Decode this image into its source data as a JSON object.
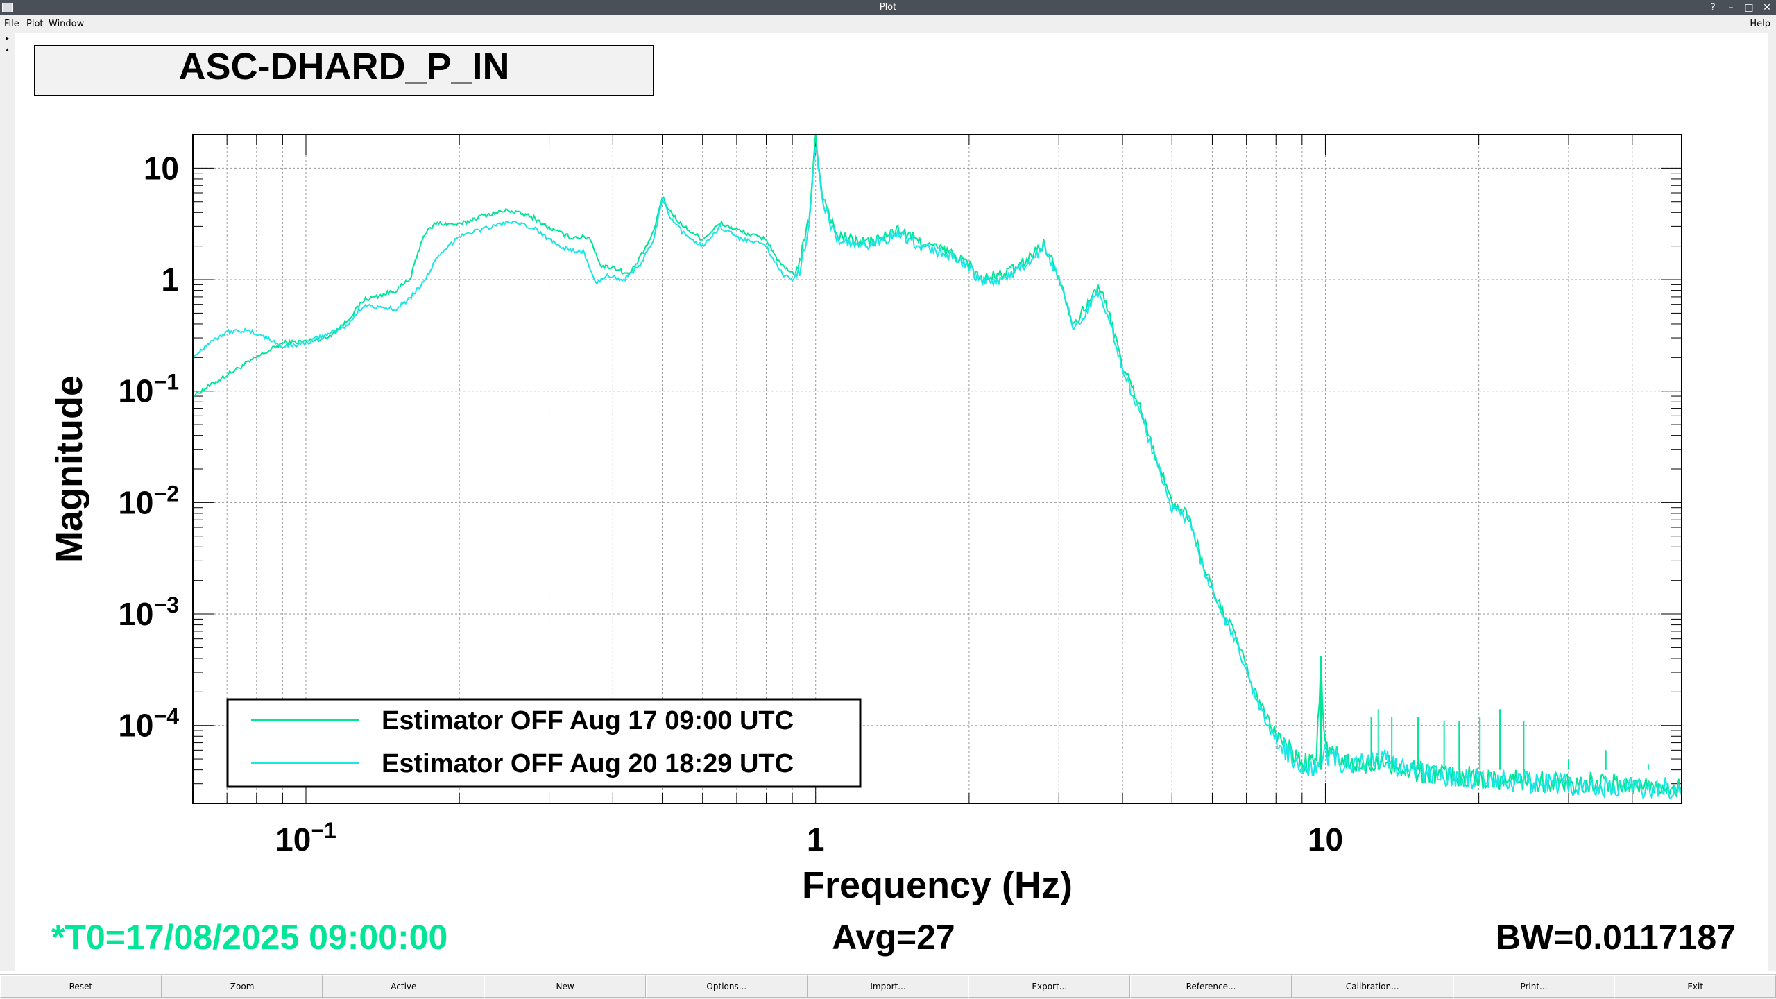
{
  "window": {
    "title": "Plot"
  },
  "menu": [
    "File",
    "Plot",
    "Window"
  ],
  "help": "Help",
  "theme": {
    "trace1": "#00e596",
    "trace2": "#1ae6e6",
    "status_color": "#00e596"
  },
  "plot_title": "ASC-DHARD_P_IN",
  "status": {
    "t0": "*T0=17/08/2025 09:00:00",
    "avg": "Avg=27",
    "bw": "BW=0.0117187"
  },
  "buttons": [
    "Reset",
    "Zoom",
    "Active",
    "New",
    "Options...",
    "Import...",
    "Export...",
    "Reference...",
    "Calibration...",
    "Print...",
    "Exit"
  ],
  "chart_data": {
    "type": "line",
    "title": "ASC-DHARD_P_IN",
    "xlabel": "Frequency (Hz)",
    "ylabel": "Magnitude",
    "xscale": "log",
    "yscale": "log",
    "xlim": [
      0.06,
      50
    ],
    "ylim": [
      2e-05,
      20
    ],
    "grid": true,
    "legend_position": "bottom-left",
    "xticks": [
      {
        "value": 0.1,
        "base": "10",
        "exp": "−1"
      },
      {
        "value": 1,
        "base": "1",
        "exp": ""
      },
      {
        "value": 10,
        "base": "10",
        "exp": ""
      }
    ],
    "yticks": [
      {
        "value": 10,
        "base": "10",
        "exp": ""
      },
      {
        "value": 1,
        "base": "1",
        "exp": ""
      },
      {
        "value": 0.1,
        "base": "10",
        "exp": "−1"
      },
      {
        "value": 0.01,
        "base": "10",
        "exp": "−2"
      },
      {
        "value": 0.001,
        "base": "10",
        "exp": "−3"
      },
      {
        "value": 0.0001,
        "base": "10",
        "exp": "−4"
      }
    ],
    "series": [
      {
        "name": "Estimator OFF Aug 17 09:00 UTC",
        "color": "#00e596",
        "points": [
          [
            0.06,
            0.09
          ],
          [
            0.07,
            0.14
          ],
          [
            0.08,
            0.2
          ],
          [
            0.09,
            0.27
          ],
          [
            0.1,
            0.28
          ],
          [
            0.11,
            0.3
          ],
          [
            0.12,
            0.42
          ],
          [
            0.13,
            0.66
          ],
          [
            0.14,
            0.72
          ],
          [
            0.15,
            0.8
          ],
          [
            0.16,
            1.0
          ],
          [
            0.17,
            2.5
          ],
          [
            0.18,
            3.2
          ],
          [
            0.2,
            3.1
          ],
          [
            0.22,
            3.7
          ],
          [
            0.25,
            4.2
          ],
          [
            0.28,
            3.6
          ],
          [
            0.3,
            2.9
          ],
          [
            0.33,
            2.4
          ],
          [
            0.36,
            2.4
          ],
          [
            0.38,
            1.3
          ],
          [
            0.4,
            1.3
          ],
          [
            0.43,
            1.1
          ],
          [
            0.45,
            1.5
          ],
          [
            0.48,
            2.6
          ],
          [
            0.5,
            5.5
          ],
          [
            0.52,
            4.0
          ],
          [
            0.55,
            3.0
          ],
          [
            0.6,
            2.3
          ],
          [
            0.65,
            3.2
          ],
          [
            0.7,
            2.8
          ],
          [
            0.75,
            2.5
          ],
          [
            0.8,
            2.3
          ],
          [
            0.85,
            1.4
          ],
          [
            0.9,
            1.1
          ],
          [
            0.93,
            1.4
          ],
          [
            0.97,
            3.5
          ],
          [
            1.0,
            19.0
          ],
          [
            1.03,
            6.0
          ],
          [
            1.1,
            2.5
          ],
          [
            1.2,
            2.2
          ],
          [
            1.3,
            2.2
          ],
          [
            1.45,
            2.8
          ],
          [
            1.6,
            2.2
          ],
          [
            1.8,
            1.8
          ],
          [
            2.0,
            1.4
          ],
          [
            2.1,
            1.0
          ],
          [
            2.3,
            1.1
          ],
          [
            2.5,
            1.3
          ],
          [
            2.8,
            2.1
          ],
          [
            3.0,
            1.1
          ],
          [
            3.2,
            0.4
          ],
          [
            3.4,
            0.58
          ],
          [
            3.6,
            0.9
          ],
          [
            3.8,
            0.42
          ],
          [
            4.0,
            0.17
          ],
          [
            4.3,
            0.08
          ],
          [
            4.6,
            0.03
          ],
          [
            5.0,
            0.01
          ],
          [
            5.4,
            0.0075
          ],
          [
            5.8,
            0.0025
          ],
          [
            6.2,
            0.0012
          ],
          [
            6.7,
            0.0006
          ],
          [
            7.2,
            0.00022
          ],
          [
            7.8,
            0.0001
          ],
          [
            8.5,
            6e-05
          ],
          [
            9.2,
            4.5e-05
          ],
          [
            9.6,
            5e-05
          ],
          [
            9.8,
            0.00035
          ],
          [
            10.0,
            6e-05
          ],
          [
            11,
            4.5e-05
          ],
          [
            12,
            4.2e-05
          ],
          [
            13,
            5.2e-05
          ],
          [
            14,
            4e-05
          ],
          [
            16,
            3.8e-05
          ],
          [
            18,
            3.5e-05
          ],
          [
            20,
            3.4e-05
          ],
          [
            25,
            3.2e-05
          ],
          [
            30,
            3.1e-05
          ],
          [
            35,
            3e-05
          ],
          [
            40,
            2.9e-05
          ],
          [
            50,
            2.8e-05
          ]
        ]
      },
      {
        "name": "Estimator OFF Aug 20 18:29 UTC",
        "color": "#1ae6e6",
        "points": [
          [
            0.06,
            0.2
          ],
          [
            0.065,
            0.28
          ],
          [
            0.07,
            0.34
          ],
          [
            0.075,
            0.35
          ],
          [
            0.08,
            0.33
          ],
          [
            0.085,
            0.29
          ],
          [
            0.09,
            0.25
          ],
          [
            0.1,
            0.27
          ],
          [
            0.12,
            0.38
          ],
          [
            0.13,
            0.6
          ],
          [
            0.14,
            0.55
          ],
          [
            0.15,
            0.55
          ],
          [
            0.16,
            0.68
          ],
          [
            0.17,
            0.95
          ],
          [
            0.18,
            1.5
          ],
          [
            0.2,
            2.5
          ],
          [
            0.22,
            2.8
          ],
          [
            0.25,
            3.3
          ],
          [
            0.28,
            2.9
          ],
          [
            0.3,
            2.3
          ],
          [
            0.33,
            1.8
          ],
          [
            0.35,
            1.8
          ],
          [
            0.37,
            0.92
          ],
          [
            0.39,
            1.1
          ],
          [
            0.42,
            1.0
          ],
          [
            0.45,
            1.3
          ],
          [
            0.48,
            2.2
          ],
          [
            0.5,
            5.2
          ],
          [
            0.52,
            3.5
          ],
          [
            0.55,
            2.6
          ],
          [
            0.6,
            2.0
          ],
          [
            0.65,
            3.0
          ],
          [
            0.7,
            2.4
          ],
          [
            0.75,
            2.2
          ],
          [
            0.8,
            2.0
          ],
          [
            0.85,
            1.2
          ],
          [
            0.9,
            0.95
          ],
          [
            0.93,
            1.2
          ],
          [
            0.97,
            3.0
          ],
          [
            1.0,
            17.0
          ],
          [
            1.03,
            5.0
          ],
          [
            1.1,
            2.3
          ],
          [
            1.2,
            2.0
          ],
          [
            1.3,
            2.1
          ],
          [
            1.45,
            2.6
          ],
          [
            1.6,
            2.0
          ],
          [
            1.8,
            1.7
          ],
          [
            2.0,
            1.3
          ],
          [
            2.1,
            0.95
          ],
          [
            2.3,
            1.0
          ],
          [
            2.5,
            1.2
          ],
          [
            2.8,
            1.9
          ],
          [
            3.0,
            1.0
          ],
          [
            3.2,
            0.36
          ],
          [
            3.4,
            0.52
          ],
          [
            3.6,
            0.82
          ],
          [
            3.8,
            0.38
          ],
          [
            4.0,
            0.15
          ],
          [
            4.3,
            0.07
          ],
          [
            4.6,
            0.028
          ],
          [
            5.0,
            0.009
          ],
          [
            5.4,
            0.0068
          ],
          [
            5.8,
            0.0023
          ],
          [
            6.2,
            0.0011
          ],
          [
            6.7,
            0.00055
          ],
          [
            7.2,
            0.0002
          ],
          [
            7.8,
            9e-05
          ],
          [
            8.5,
            5.5e-05
          ],
          [
            9.2,
            4e-05
          ],
          [
            9.6,
            4.5e-05
          ],
          [
            10.0,
            5.5e-05
          ],
          [
            11,
            4.5e-05
          ],
          [
            12,
            4.5e-05
          ],
          [
            13,
            5e-05
          ],
          [
            14,
            4e-05
          ],
          [
            16,
            3.7e-05
          ],
          [
            18,
            3.4e-05
          ],
          [
            20,
            3.3e-05
          ],
          [
            25,
            3.1e-05
          ],
          [
            30,
            3e-05
          ],
          [
            35,
            2.9e-05
          ],
          [
            40,
            2.8e-05
          ],
          [
            50,
            2.7e-05
          ]
        ]
      }
    ],
    "spikes": [
      [
        9.8,
        0.0004
      ],
      [
        12.3,
        0.00012
      ],
      [
        12.7,
        0.00014
      ],
      [
        13.5,
        0.00012
      ],
      [
        15.2,
        0.00012
      ],
      [
        17.1,
        0.00011
      ],
      [
        18.3,
        0.00011
      ],
      [
        20.1,
        0.00012
      ],
      [
        22.0,
        0.00014
      ],
      [
        24.5,
        0.00011
      ],
      [
        30.0,
        5e-05
      ],
      [
        35.5,
        6e-05
      ],
      [
        43,
        4.5e-05
      ]
    ]
  }
}
